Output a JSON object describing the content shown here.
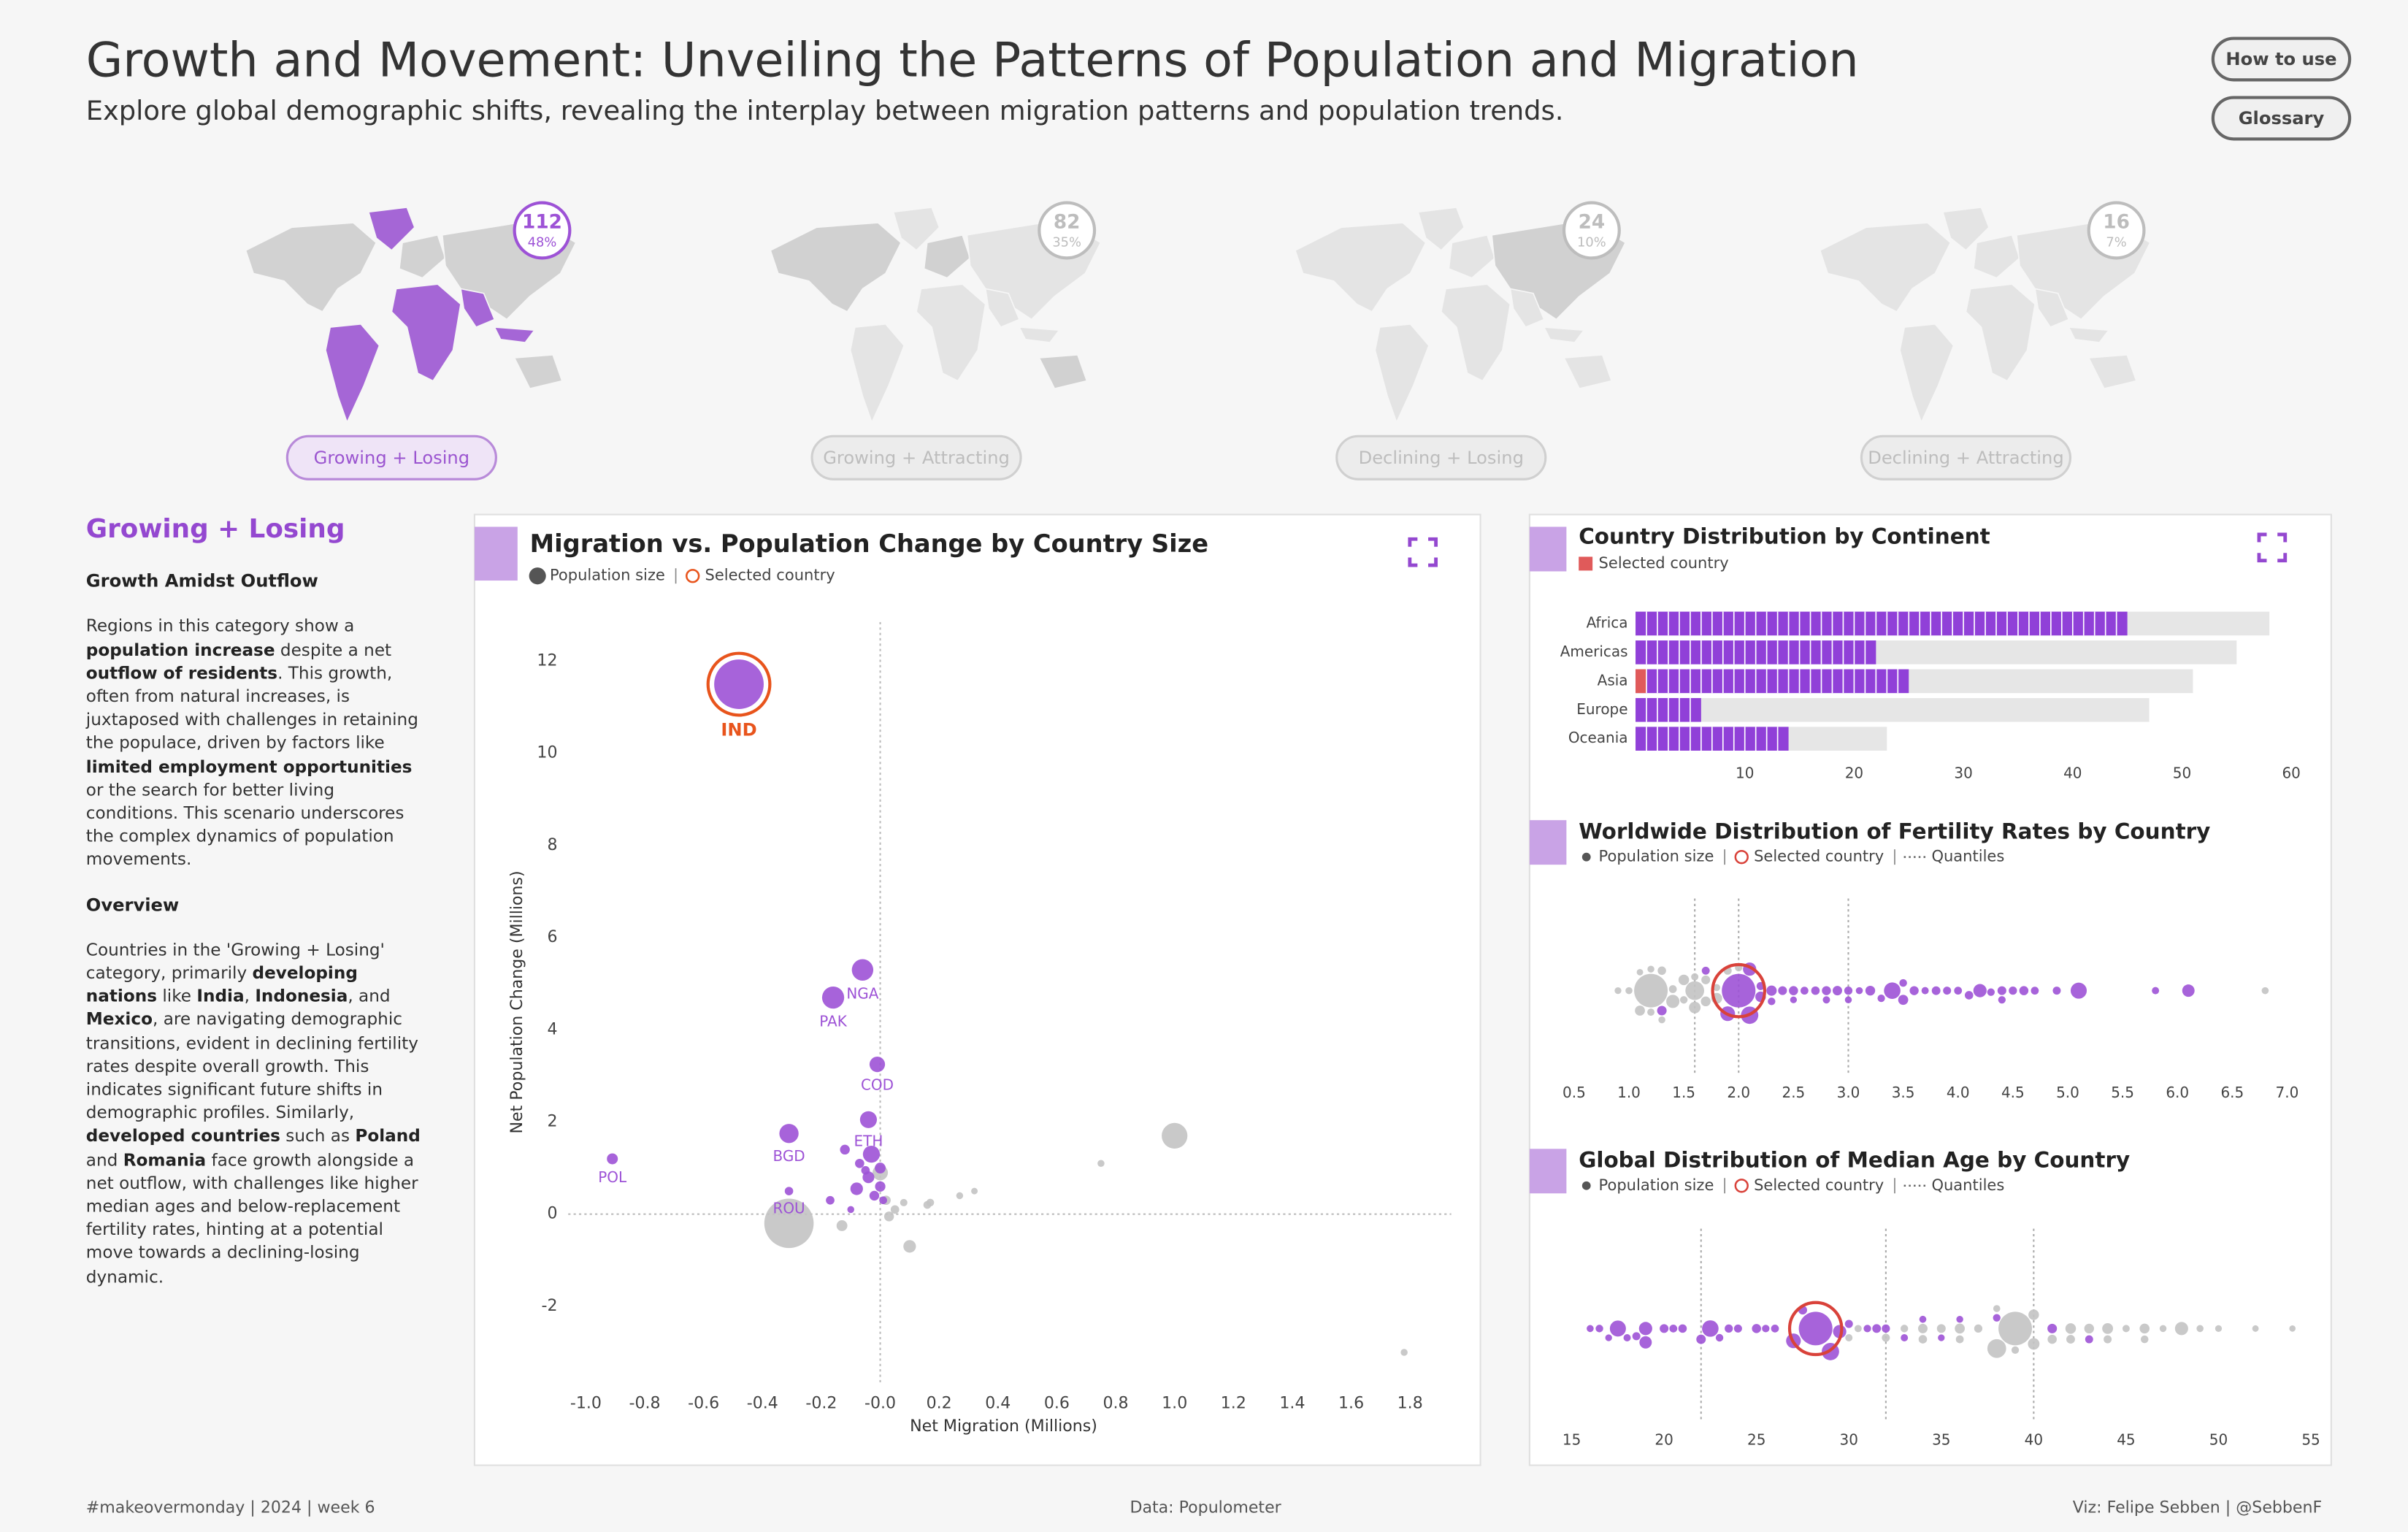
{
  "header": {
    "title": "Growth and Movement: Unveiling the Patterns of Population and Migration",
    "subtitle": "Explore global demographic shifts, revealing the interplay between migration patterns and population trends.",
    "buttons": [
      "How to use",
      "Glossary"
    ]
  },
  "categories": [
    {
      "label": "Growing + Losing",
      "count": 112,
      "share": "48%",
      "active": true
    },
    {
      "label": "Growing + Attracting",
      "count": 82,
      "share": "35%",
      "active": false
    },
    {
      "label": "Declining + Losing",
      "count": 24,
      "share": "10%",
      "active": false
    },
    {
      "label": "Declining + Attracting",
      "count": 16,
      "share": "7%",
      "active": false
    }
  ],
  "sidebar": {
    "title": "Growing + Losing",
    "sections": [
      {
        "heading": "Growth Amidst Outflow",
        "paragraph": [
          {
            "text": "Regions in this category show a "
          },
          {
            "text": "population increase",
            "bold": true
          },
          {
            "text": " despite a net "
          },
          {
            "text": "outflow of residents",
            "bold": true
          },
          {
            "text": ". This growth, often from natural increases, is juxtaposed with challenges in retaining the populace, driven by factors like "
          },
          {
            "text": "limited employment opportunities",
            "bold": true
          },
          {
            "text": " or the search for better living conditions. This scenario underscores the complex dynamics of population movements."
          }
        ]
      },
      {
        "heading": "Overview",
        "paragraph": [
          {
            "text": "Countries in the 'Growing + Losing' category, primarily "
          },
          {
            "text": "developing nations",
            "bold": true
          },
          {
            "text": " like "
          },
          {
            "text": "India",
            "bold": true
          },
          {
            "text": ", "
          },
          {
            "text": "Indonesia",
            "bold": true
          },
          {
            "text": ", and "
          },
          {
            "text": "Mexico",
            "bold": true
          },
          {
            "text": ", are navigating demographic transitions, evident in declining fertility rates despite overall growth. This indicates significant future shifts in demographic profiles. Similarly, "
          },
          {
            "text": "developed countries",
            "bold": true
          },
          {
            "text": " such as "
          },
          {
            "text": "Poland",
            "bold": true
          },
          {
            "text": " and "
          },
          {
            "text": "Romania",
            "bold": true
          },
          {
            "text": " face growth alongside a net outflow, with challenges like higher median ages and below-replacement fertility rates, hinting at a potential move towards a declining-losing dynamic."
          }
        ]
      }
    ]
  },
  "chart_data": [
    {
      "type": "scatter",
      "title": "Migration vs. Population Change by Country Size",
      "legend": [
        "Population size",
        "Selected country"
      ],
      "x_label": "Net Migration (Millions)",
      "y_label": "Net Population Change (Millions)",
      "xlim": [
        -1.06,
        1.94
      ],
      "ylim": [
        -3.65,
        12.85
      ],
      "xticks": [
        {
          "value": -1,
          "label": "-1.0"
        },
        -0.8,
        -0.6,
        -0.4,
        -0.2,
        {
          "value": 0,
          "label": "-0.0"
        },
        0.2,
        0.4,
        0.6,
        0.8,
        {
          "value": 1,
          "label": "1.0"
        },
        1.2,
        1.4,
        1.6,
        1.8
      ],
      "yticks": [
        -2,
        0,
        2,
        4,
        6,
        8,
        10,
        12
      ],
      "selected_label": "IND",
      "selected_color": "#e8541c",
      "series": [
        {
          "color": "#9d52d6",
          "x": [
            -0.48,
            -0.06,
            -0.16,
            -0.01,
            -0.04,
            -0.31,
            -0.91,
            -0.31,
            -0.12,
            0.0,
            -0.07,
            -0.04,
            0.0,
            -0.08,
            -0.17,
            -0.02,
            -0.05,
            0.01,
            -0.1,
            -0.03
          ],
          "values": [
            11.5,
            5.3,
            4.7,
            3.25,
            2.05,
            1.75,
            1.2,
            0.5,
            1.4,
            1.0,
            1.1,
            0.8,
            0.6,
            0.55,
            0.3,
            0.4,
            0.95,
            0.3,
            0.1,
            1.3
          ],
          "sizes": [
            1430,
            224,
            240,
            102,
            127,
            173,
            41,
            19,
            30,
            40,
            25,
            50,
            35,
            60,
            20,
            30,
            20,
            15,
            10,
            128
          ],
          "labels": [
            "IND",
            "NGA",
            "PAK",
            "COD",
            "ETH",
            "BGD",
            "POL",
            "ROU",
            null,
            null,
            null,
            null,
            null,
            null,
            null,
            null,
            null,
            null,
            null,
            null
          ]
        },
        {
          "color": "#c3c3c3",
          "x": [
            -0.31,
            1.0,
            0.75,
            -0.13,
            0.1,
            1.78,
            0.0,
            0.16,
            0.27,
            0.32,
            0.05,
            0.03,
            0.08,
            0.17,
            0.02
          ],
          "values": [
            -0.2,
            1.7,
            1.1,
            -0.25,
            -0.7,
            -3.0,
            0.9,
            0.2,
            0.4,
            0.5,
            0.1,
            -0.05,
            0.25,
            0.25,
            0.3
          ],
          "sizes": [
            1420,
            340,
            10,
            40,
            60,
            10,
            100,
            15,
            10,
            8,
            20,
            30,
            12,
            14,
            25
          ]
        }
      ]
    },
    {
      "type": "bar",
      "orientation": "horizontal",
      "title": "Country Distribution by Continent",
      "legend": [
        "Selected country"
      ],
      "categories": [
        "Africa",
        "Americas",
        "Asia",
        "Europe",
        "Oceania"
      ],
      "highlight": "Asia",
      "highlight_color": "#e05a5a",
      "xlim": [
        0,
        60
      ],
      "xticks": [
        10,
        20,
        30,
        40,
        50,
        60
      ],
      "series": [
        {
          "color": "#9040d8",
          "values": [
            45,
            22,
            25,
            6,
            14
          ]
        },
        {
          "color": "#e6e6e6",
          "values": [
            58,
            55,
            51,
            47,
            23
          ]
        }
      ]
    },
    {
      "type": "beeswarm",
      "title": "Worldwide Distribution of Fertility Rates by Country",
      "legend": [
        "Population size",
        "Selected country",
        "Quantiles"
      ],
      "xlim": [
        0.36,
        7.15
      ],
      "xticks": [
        0.5,
        {
          "value": 1,
          "label": "1.0"
        },
        1.5,
        {
          "value": 2,
          "label": "2.0"
        },
        2.5,
        {
          "value": 3,
          "label": "3.0"
        },
        3.5,
        {
          "value": 4,
          "label": "4.0"
        },
        4.5,
        {
          "value": 5,
          "label": "5.0"
        },
        5.5,
        {
          "value": 6,
          "label": "6.0"
        },
        6.5,
        {
          "value": 7,
          "label": "7.0"
        }
      ],
      "quantiles": [
        1.6,
        2.0,
        3.0
      ],
      "selected": {
        "x": 2.0,
        "size": 1430
      },
      "selected_color": "#d9423a",
      "series": [
        {
          "color": "#9d52d6",
          "x": [
            2.1,
            2.2,
            2.3,
            2.4,
            2.5,
            2.6,
            2.7,
            2.8,
            2.9,
            3.0,
            3.1,
            3.2,
            3.3,
            3.4,
            3.5,
            3.6,
            3.7,
            3.8,
            3.9,
            4.0,
            4.1,
            4.2,
            4.3,
            4.4,
            4.5,
            4.6,
            4.7,
            4.9,
            5.1,
            5.8,
            6.1,
            2.3,
            2.5,
            3.0,
            1.9,
            1.3,
            1.7,
            2.1,
            2.2,
            3.5,
            4.4,
            2.8
          ],
          "sizes": [
            277,
            20,
            15,
            30,
            35,
            18,
            25,
            12,
            40,
            22,
            10,
            45,
            14,
            240,
            16,
            33,
            12,
            28,
            20,
            18,
            25,
            127,
            15,
            30,
            22,
            35,
            18,
            20,
            224,
            12,
            102,
            55,
            8,
            9,
            173,
            41,
            19,
            128,
            60,
            50,
            14,
            33
          ]
        },
        {
          "color": "#c3c3c3",
          "x": [
            1.2,
            0.9,
            1.0,
            1.1,
            1.2,
            1.3,
            1.4,
            1.5,
            1.6,
            1.7,
            1.8,
            1.9,
            1.4,
            1.3,
            1.5,
            1.6,
            1.8,
            2.0,
            1.7,
            6.8,
            1.1,
            1.2,
            1.6
          ],
          "sizes": [
            1420,
            8,
            10,
            50,
            12,
            25,
            125,
            60,
            340,
            30,
            66,
            20,
            18,
            9,
            15,
            12,
            10,
            14,
            45,
            10,
            6,
            9,
            83
          ]
        }
      ]
    },
    {
      "type": "beeswarm",
      "title": "Global Distribution of Median Age by Country",
      "legend": [
        "Population size",
        "Selected country",
        "Quantiles"
      ],
      "xlim": [
        14.3,
        55.6
      ],
      "xticks": [
        15,
        20,
        25,
        30,
        35,
        40,
        45,
        50,
        55
      ],
      "quantiles": [
        22,
        32,
        40
      ],
      "selected": {
        "x": 28.2,
        "size": 1430
      },
      "selected_color": "#d9423a",
      "series": [
        {
          "color": "#9d52d6",
          "x": [
            16,
            17,
            17.5,
            18,
            19,
            19,
            20,
            21,
            22,
            22.5,
            23,
            24,
            25,
            26,
            27,
            29,
            29.5,
            30,
            31,
            32,
            33,
            34,
            36,
            38,
            41,
            43,
            16.5,
            18.5,
            20.5,
            23.5,
            25.5,
            27.5,
            31.5,
            35
          ],
          "sizes": [
            10,
            8,
            224,
            12,
            127,
            102,
            30,
            25,
            40,
            240,
            15,
            20,
            35,
            18,
            173,
            277,
            128,
            20,
            14,
            22,
            12,
            10,
            9,
            15,
            41,
            19,
            15,
            20,
            18,
            22,
            14,
            30,
            28,
            8
          ]
        },
        {
          "color": "#c3c3c3",
          "x": [
            39,
            38,
            30,
            32,
            33,
            34,
            35,
            36,
            37,
            38,
            39,
            40,
            41,
            42,
            43,
            44,
            45,
            46,
            47,
            48,
            49,
            50,
            52,
            40,
            44,
            42,
            36,
            34,
            30.5,
            46,
            54
          ],
          "sizes": [
            1420,
            340,
            12,
            20,
            15,
            25,
            30,
            18,
            22,
            10,
            14,
            60,
            35,
            28,
            45,
            20,
            12,
            16,
            9,
            125,
            10,
            8,
            6,
            83,
            66,
            60,
            50,
            40,
            11,
            48,
            5
          ]
        }
      ]
    }
  ],
  "footer": {
    "left": "#makeovermonday | 2024 | week 6",
    "center": "Data: Populometer",
    "right": "Viz: Felipe Sebben | @SebbenF"
  }
}
